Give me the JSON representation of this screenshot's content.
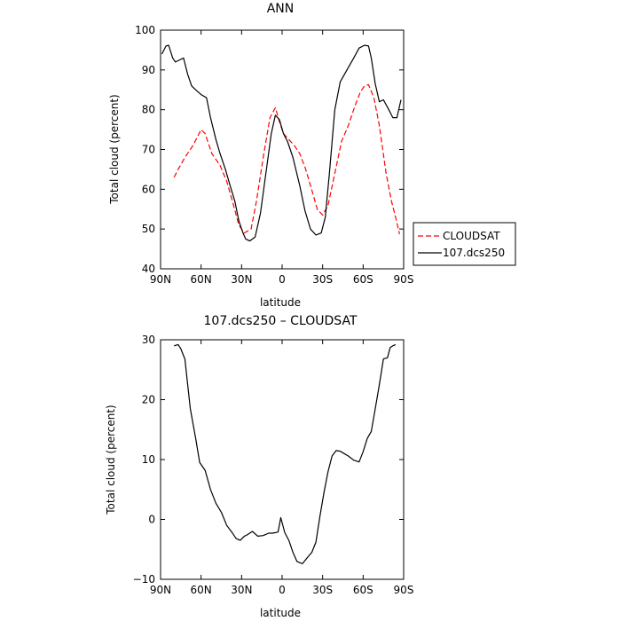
{
  "chart_data": [
    {
      "type": "line",
      "title": "ANN",
      "xlabel": "latitude",
      "ylabel": "Total cloud (percent)",
      "xlim": [
        90,
        -90
      ],
      "ylim": [
        40,
        100
      ],
      "x_ticks": [
        90,
        60,
        30,
        0,
        -30,
        -60,
        -90
      ],
      "x_tick_labels": [
        "90N",
        "60N",
        "30N",
        "0",
        "30S",
        "60S",
        "90S"
      ],
      "y_ticks": [
        40,
        50,
        60,
        70,
        80,
        90,
        100
      ],
      "y_tick_labels": [
        "40",
        "50",
        "60",
        "70",
        "80",
        "90",
        "100"
      ],
      "grid": false,
      "legend_position": "right",
      "series": [
        {
          "name": "CLOUDSAT",
          "color": "#ff0000",
          "dash": "dashed",
          "x": [
            80,
            77,
            72,
            66,
            60,
            57,
            52,
            46,
            41,
            36,
            32,
            28,
            23,
            19,
            14,
            9,
            5,
            2,
            -1,
            -5,
            -9,
            -13,
            -17,
            -21,
            -26,
            -30,
            -34,
            -39,
            -44,
            -49,
            -54,
            -58,
            -61,
            -64,
            -68,
            -72,
            -77,
            -81,
            -84,
            -87
          ],
          "y": [
            63,
            65,
            68,
            71,
            75,
            74,
            69,
            66,
            62,
            56,
            51,
            49,
            50,
            57,
            68,
            78,
            80.5,
            77,
            74,
            72.5,
            71,
            69,
            65.5,
            61,
            55,
            53.5,
            56,
            64,
            72,
            76,
            81,
            84.5,
            86,
            86.3,
            83,
            76,
            64,
            57,
            53,
            48.7
          ]
        },
        {
          "name": "107.dcs250",
          "color": "#000000",
          "dash": "solid",
          "x": [
            89,
            86,
            84,
            81,
            79,
            76,
            73,
            70,
            67,
            64,
            60,
            56,
            53,
            49,
            46,
            42,
            39,
            35,
            32,
            29,
            27,
            24,
            20,
            16,
            12,
            8,
            5,
            2,
            -1,
            -4,
            -8,
            -13,
            -17,
            -21,
            -25,
            -29,
            -32,
            -35,
            -39,
            -43,
            -48,
            -53,
            -57,
            -61,
            -64,
            -66,
            -69,
            -72,
            -75,
            -79,
            -82,
            -85,
            -88
          ],
          "y": [
            94,
            96,
            96.2,
            93,
            92,
            92.5,
            93,
            89,
            86,
            85,
            83.8,
            83,
            78,
            72.5,
            69,
            65,
            61.5,
            57,
            52,
            49,
            47.5,
            47,
            48,
            54,
            64,
            74,
            78.6,
            77.5,
            74,
            72,
            68,
            61,
            54.5,
            50,
            48.5,
            49,
            53,
            64,
            80,
            87,
            90,
            93,
            95.5,
            96.2,
            96,
            93,
            86.5,
            82,
            82.5,
            80,
            78,
            78,
            82.5
          ]
        }
      ]
    },
    {
      "type": "line",
      "title": "107.dcs250 – CLOUDSAT",
      "xlabel": "latitude",
      "ylabel": "Total cloud (percent)",
      "xlim": [
        90,
        -90
      ],
      "ylim": [
        -10,
        30
      ],
      "x_ticks": [
        90,
        60,
        30,
        0,
        -30,
        -60,
        -90
      ],
      "x_tick_labels": [
        "90N",
        "60N",
        "30N",
        "0",
        "30S",
        "60S",
        "90S"
      ],
      "y_ticks": [
        -10,
        0,
        10,
        20,
        30
      ],
      "y_tick_labels": [
        "−10",
        "0",
        "10",
        "20",
        "30"
      ],
      "grid": false,
      "series": [
        {
          "color": "#000000",
          "dash": "solid",
          "x": [
            80,
            77,
            75,
            72,
            68,
            64,
            61,
            57,
            53,
            49,
            45,
            41,
            37,
            34,
            31,
            28,
            26,
            22,
            18,
            14,
            10,
            7,
            5,
            3,
            1,
            -2,
            -5,
            -8,
            -11,
            -15,
            -19,
            -22,
            -25,
            -28,
            -31,
            -34,
            -37,
            -40,
            -43,
            -46,
            -49,
            -53,
            -57,
            -60,
            -63,
            -66,
            -69,
            -72,
            -75,
            -78,
            -80,
            -82,
            -84
          ],
          "y": [
            29,
            29.2,
            28.5,
            26.8,
            18.5,
            13.5,
            9.5,
            8.2,
            5,
            2.7,
            1.2,
            -1,
            -2.2,
            -3.2,
            -3.5,
            -2.8,
            -2.6,
            -2,
            -2.8,
            -2.7,
            -2.3,
            -2.3,
            -2.2,
            -2.1,
            0.3,
            -2.2,
            -3.5,
            -5.5,
            -7,
            -7.4,
            -6.3,
            -5.5,
            -3.8,
            0.5,
            4.5,
            8,
            10.6,
            11.5,
            11.4,
            11,
            10.6,
            9.9,
            9.6,
            11.3,
            13.5,
            14.7,
            18.5,
            22.5,
            26.8,
            27,
            28.7,
            29,
            29.2
          ]
        }
      ]
    }
  ]
}
